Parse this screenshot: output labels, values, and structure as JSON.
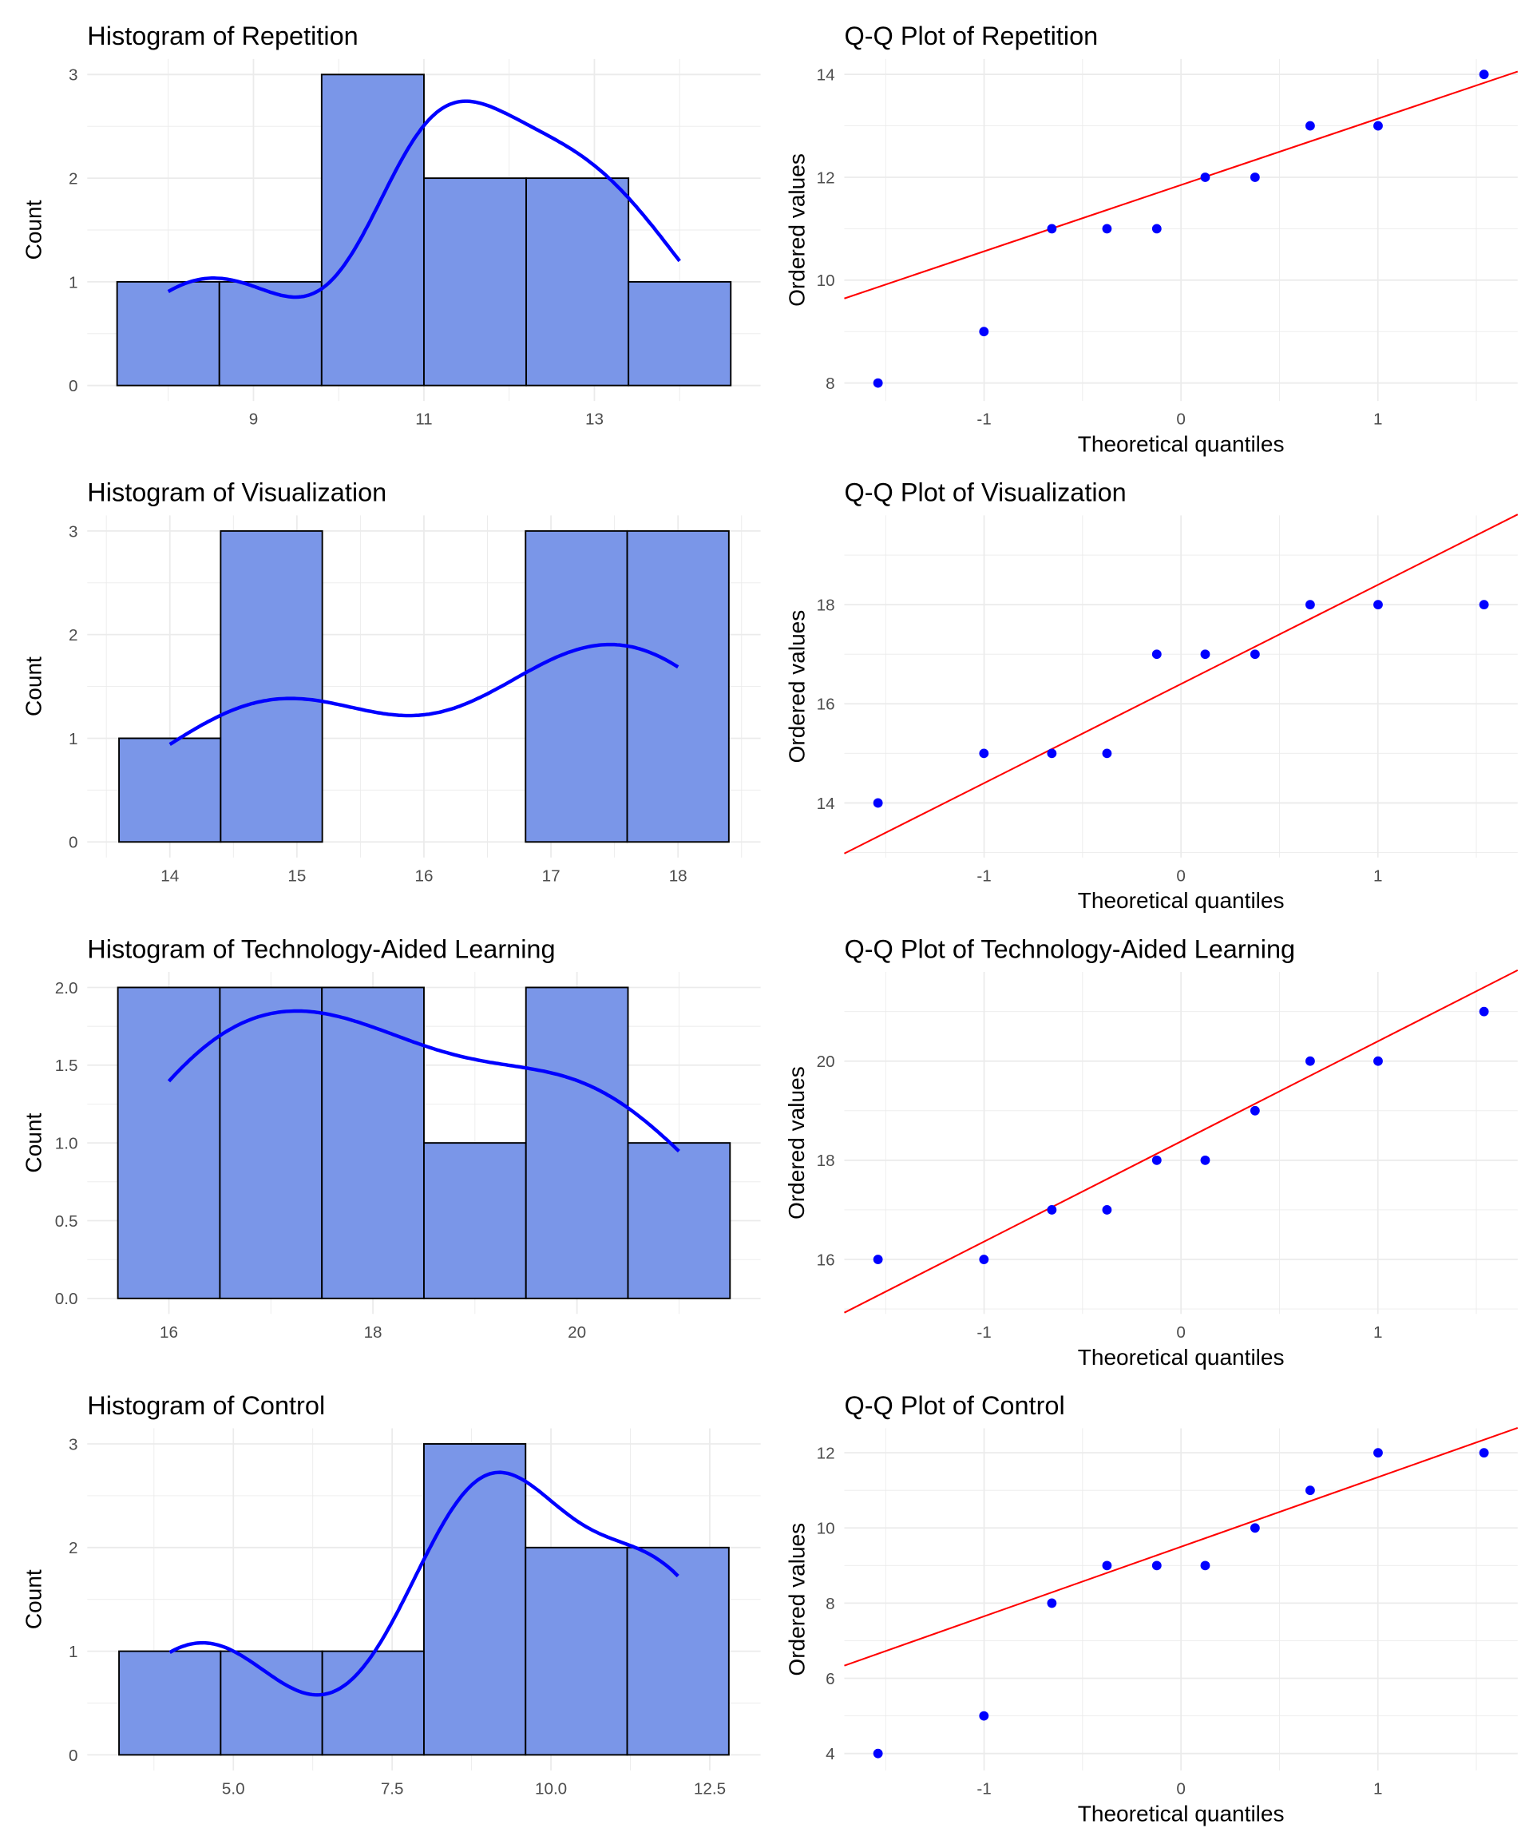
{
  "chart_data": [
    {
      "type": "bar",
      "title": "Histogram of Repetition",
      "xlabel": "",
      "ylabel": "Count",
      "bins": [
        [
          7.4,
          8.6
        ],
        [
          8.6,
          9.8
        ],
        [
          9.8,
          11.0
        ],
        [
          11.0,
          12.2
        ],
        [
          12.2,
          13.4
        ],
        [
          13.4,
          14.6
        ]
      ],
      "values": [
        1,
        1,
        3,
        2,
        2,
        1
      ],
      "binwidth": 1.2,
      "density_data": [
        8,
        9,
        11,
        11,
        11,
        12,
        12,
        13,
        13,
        14
      ],
      "xlim": [
        7.05,
        14.95
      ],
      "ylim": [
        -0.15,
        3.15
      ],
      "xticks": [
        9,
        11,
        13
      ],
      "xtick_labels": [
        "9",
        "11",
        "13"
      ],
      "yticks": [
        0,
        1,
        2,
        3
      ],
      "ytick_labels": [
        "0",
        "1",
        "2",
        "3"
      ],
      "grid": true
    },
    {
      "type": "scatter",
      "title": "Q-Q Plot of Repetition",
      "xlabel": "Theoretical quantiles",
      "ylabel": "Ordered values",
      "x": [
        -1.539,
        -1.001,
        -0.656,
        -0.376,
        -0.123,
        0.123,
        0.376,
        0.656,
        1.001,
        1.539
      ],
      "y": [
        8,
        9,
        11,
        11,
        11,
        12,
        12,
        13,
        13,
        14
      ],
      "reference_line": {
        "intercept": 11.85,
        "slope": 1.29
      },
      "xlim": [
        -1.71,
        1.71
      ],
      "ylim": [
        7.65,
        14.3
      ],
      "xticks": [
        -1,
        0,
        1
      ],
      "xtick_labels": [
        "-1",
        "0",
        "1"
      ],
      "yticks": [
        8,
        10,
        12,
        14
      ],
      "ytick_labels": [
        "8",
        "10",
        "12",
        "14"
      ],
      "grid": true
    },
    {
      "type": "bar",
      "title": "Histogram of Visualization",
      "xlabel": "",
      "ylabel": "Count",
      "bins": [
        [
          13.6,
          14.4
        ],
        [
          14.4,
          15.2
        ],
        [
          15.2,
          16.0
        ],
        [
          16.0,
          16.8
        ],
        [
          16.8,
          17.6
        ],
        [
          17.6,
          18.4
        ]
      ],
      "values": [
        1,
        3,
        0,
        0,
        3,
        3
      ],
      "binwidth": 0.8,
      "density_data": [
        14,
        15,
        15,
        15,
        17,
        17,
        17,
        18,
        18,
        18
      ],
      "xlim": [
        13.35,
        18.65
      ],
      "ylim": [
        -0.15,
        3.15
      ],
      "xticks": [
        14,
        15,
        16,
        17,
        18
      ],
      "xtick_labels": [
        "14",
        "15",
        "16",
        "17",
        "18"
      ],
      "yticks": [
        0,
        1,
        2,
        3
      ],
      "ytick_labels": [
        "0",
        "1",
        "2",
        "3"
      ],
      "grid": true
    },
    {
      "type": "scatter",
      "title": "Q-Q Plot of Visualization",
      "xlabel": "Theoretical quantiles",
      "ylabel": "Ordered values",
      "x": [
        -1.539,
        -1.001,
        -0.656,
        -0.376,
        -0.123,
        0.123,
        0.376,
        0.656,
        1.001,
        1.539
      ],
      "y": [
        14,
        15,
        15,
        15,
        17,
        17,
        17,
        18,
        18,
        18
      ],
      "reference_line": {
        "intercept": 16.4,
        "slope": 2.0
      },
      "xlim": [
        -1.71,
        1.71
      ],
      "ylim": [
        12.9,
        19.8
      ],
      "xticks": [
        -1,
        0,
        1
      ],
      "xtick_labels": [
        "-1",
        "0",
        "1"
      ],
      "yticks": [
        14,
        16,
        18
      ],
      "ytick_labels": [
        "14",
        "16",
        "18"
      ],
      "grid": true
    },
    {
      "type": "bar",
      "title": "Histogram of Technology-Aided Learning",
      "xlabel": "",
      "ylabel": "Count",
      "bins": [
        [
          15.5,
          16.5
        ],
        [
          16.5,
          17.5
        ],
        [
          17.5,
          18.5
        ],
        [
          18.5,
          19.5
        ],
        [
          19.5,
          20.5
        ],
        [
          20.5,
          21.5
        ]
      ],
      "values": [
        2,
        2,
        2,
        1,
        2,
        1
      ],
      "binwidth": 1.0,
      "density_data": [
        16,
        16,
        17,
        17,
        18,
        18,
        19,
        20,
        20,
        21
      ],
      "xlim": [
        15.2,
        21.8
      ],
      "ylim": [
        -0.1,
        2.1
      ],
      "xticks": [
        16,
        18,
        20
      ],
      "xtick_labels": [
        "16",
        "18",
        "20"
      ],
      "yticks": [
        0,
        0.5,
        1,
        1.5,
        2
      ],
      "ytick_labels": [
        "0.0",
        "0.5",
        "1.0",
        "1.5",
        "2.0"
      ],
      "grid": true
    },
    {
      "type": "scatter",
      "title": "Q-Q Plot of Technology-Aided Learning",
      "xlabel": "Theoretical quantiles",
      "ylabel": "Ordered values",
      "x": [
        -1.539,
        -1.001,
        -0.656,
        -0.376,
        -0.123,
        0.123,
        0.376,
        0.656,
        1.001,
        1.539
      ],
      "y": [
        16,
        16,
        17,
        17,
        18,
        18,
        19,
        20,
        20,
        21
      ],
      "reference_line": {
        "intercept": 18.38,
        "slope": 2.02
      },
      "xlim": [
        -1.71,
        1.71
      ],
      "ylim": [
        14.9,
        21.8
      ],
      "xticks": [
        -1,
        0,
        1
      ],
      "xtick_labels": [
        "-1",
        "0",
        "1"
      ],
      "yticks": [
        16,
        18,
        20
      ],
      "ytick_labels": [
        "16",
        "18",
        "20"
      ],
      "grid": true
    },
    {
      "type": "bar",
      "title": "Histogram of Control",
      "xlabel": "",
      "ylabel": "Count",
      "bins": [
        [
          3.2,
          4.8
        ],
        [
          4.8,
          6.4
        ],
        [
          6.4,
          8.0
        ],
        [
          8.0,
          9.6
        ],
        [
          9.6,
          11.2
        ],
        [
          11.2,
          12.8
        ]
      ],
      "values": [
        1,
        1,
        1,
        3,
        2,
        2
      ],
      "binwidth": 1.6,
      "density_data": [
        4,
        5,
        8,
        9,
        9,
        9,
        10,
        11,
        12,
        12
      ],
      "xlim": [
        2.7,
        13.3
      ],
      "ylim": [
        -0.15,
        3.15
      ],
      "xticks": [
        5,
        7.5,
        10,
        12.5
      ],
      "xtick_labels": [
        "5.0",
        "7.5",
        "10.0",
        "12.5"
      ],
      "yticks": [
        0,
        1,
        2,
        3
      ],
      "ytick_labels": [
        "0",
        "1",
        "2",
        "3"
      ],
      "grid": true
    },
    {
      "type": "scatter",
      "title": "Q-Q Plot of Control",
      "xlabel": "Theoretical quantiles",
      "ylabel": "Ordered values",
      "x": [
        -1.539,
        -1.001,
        -0.656,
        -0.376,
        -0.123,
        0.123,
        0.376,
        0.656,
        1.001,
        1.539
      ],
      "y": [
        4,
        5,
        8,
        9,
        9,
        9,
        10,
        11,
        12,
        12
      ],
      "reference_line": {
        "intercept": 9.5,
        "slope": 1.85
      },
      "xlim": [
        -1.71,
        1.71
      ],
      "ylim": [
        3.55,
        12.65
      ],
      "xticks": [
        -1,
        0,
        1
      ],
      "xtick_labels": [
        "-1",
        "0",
        "1"
      ],
      "yticks": [
        4,
        6,
        8,
        10,
        12
      ],
      "ytick_labels": [
        "4",
        "6",
        "8",
        "10",
        "12"
      ],
      "grid": true
    }
  ],
  "colors": {
    "bar_fill": "#7A96E8",
    "bar_edge": "#000000",
    "density": "#0000FF",
    "points": "#0000FF",
    "qq_line": "#FF0000",
    "grid": "#EBEBEB"
  }
}
